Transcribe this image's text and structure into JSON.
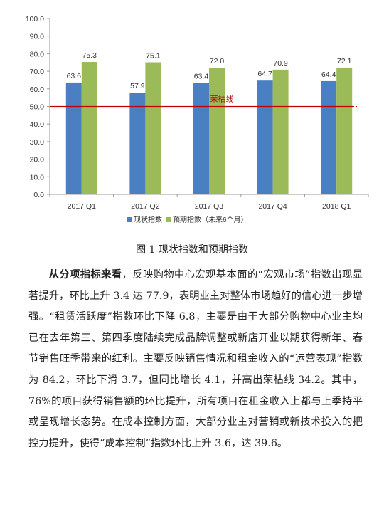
{
  "chart_data": {
    "type": "bar",
    "categories": [
      "2017 Q1",
      "2017 Q2",
      "2017 Q3",
      "2017 Q4",
      "2018 Q1"
    ],
    "series": [
      {
        "name": "现状指数",
        "values": [
          63.6,
          57.9,
          63.4,
          64.7,
          64.4
        ],
        "color": "#4a7fc1"
      },
      {
        "name": "预期指数（未来6个月）",
        "values": [
          75.3,
          75.1,
          72.0,
          70.9,
          72.1
        ],
        "color": "#9bbb59"
      }
    ],
    "ylim": [
      0,
      100
    ],
    "yticks": [
      "0.0",
      "10.0",
      "20.0",
      "30.0",
      "40.0",
      "50.0",
      "60.0",
      "70.0",
      "80.0",
      "90.0",
      "100.0"
    ],
    "value_labels": [
      [
        "63.6",
        "57.9",
        "63.4",
        "64.7",
        "64.4"
      ],
      [
        "75.3",
        "75.1",
        "72.0",
        "70.9",
        "72.1"
      ]
    ],
    "reference_line": {
      "value": 50,
      "label": "荣枯线",
      "color": "#c00000"
    },
    "grid": false,
    "legend_position": "bottom",
    "title": "",
    "xlabel": "",
    "ylabel": ""
  },
  "caption": "图 1  现状指数和预期指数",
  "paragraph": {
    "lead": "从分项指标来看",
    "text": "，反映购物中心宏观基本面的“宏观市场”指数出现显著提升，环比上升 3.4 达 77.9，表明业主对整体市场趋好的信心进一步增强。“租赁活跃度”指数环比下降 6.8，主要是由于大部分购物中心业主均已在去年第三、第四季度陆续完成品牌调整或新店开业以期获得新年、春节销售旺季带来的红利。主要反映销售情况和租金收入的“运营表现”指数为 84.2，环比下滑 3.7，但同比增长 4.1，并高出荣枯线 34.2。其中，76%的项目获得销售额的环比提升，所有项目在租金收入上都与上季持平或呈现增长态势。在成本控制方面，大部分业主对营销或新技术投入的把控力提升，使得“成本控制”指数环比上升 3.6，达 39.6。"
  }
}
